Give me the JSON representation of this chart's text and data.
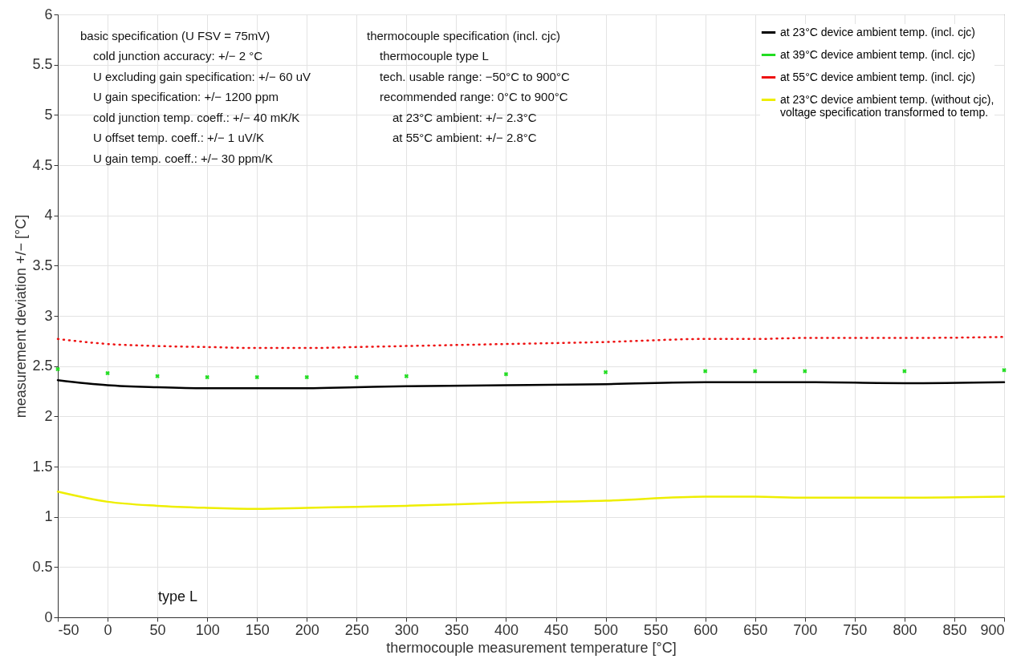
{
  "chart_data": {
    "type": "line",
    "xlabel": "thermocouple measurement temperature [°C]",
    "ylabel": "measurement deviation +/− [°C]",
    "x": [
      -50,
      0,
      50,
      100,
      150,
      200,
      250,
      300,
      400,
      500,
      600,
      650,
      700,
      800,
      900
    ],
    "series": [
      {
        "name": "at 23°C device ambient temp. (incl. cjc)",
        "color": "#000000",
        "values": [
          2.36,
          2.31,
          2.29,
          2.28,
          2.28,
          2.28,
          2.29,
          2.3,
          2.31,
          2.32,
          2.34,
          2.34,
          2.34,
          2.33,
          2.34
        ]
      },
      {
        "name": "at 39°C device ambient temp. (incl. cjc)",
        "color": "#22dd22",
        "type": "scatter",
        "marker": "cross",
        "values": [
          2.47,
          2.43,
          2.4,
          2.39,
          2.39,
          2.39,
          2.39,
          2.4,
          2.42,
          2.44,
          2.45,
          2.45,
          2.45,
          2.45,
          2.46
        ]
      },
      {
        "name": "at 55°C device ambient temp. (incl. cjc)",
        "color": "#ee1111",
        "line_style": "dotted",
        "values": [
          2.77,
          2.72,
          2.7,
          2.69,
          2.68,
          2.68,
          2.69,
          2.7,
          2.72,
          2.74,
          2.77,
          2.77,
          2.78,
          2.78,
          2.79
        ]
      },
      {
        "name": "at 23°C device ambient temp. (without cjc), voltage specification transformed to temp.",
        "color": "#eeee00",
        "values": [
          1.25,
          1.15,
          1.11,
          1.09,
          1.08,
          1.09,
          1.1,
          1.11,
          1.14,
          1.16,
          1.2,
          1.2,
          1.19,
          1.19,
          1.2
        ]
      }
    ],
    "xlim": [
      -50,
      900
    ],
    "xticks": [
      -50,
      0,
      50,
      100,
      150,
      200,
      250,
      300,
      350,
      400,
      450,
      500,
      550,
      600,
      650,
      700,
      750,
      800,
      850,
      900
    ],
    "ylim": [
      0,
      6
    ],
    "yticks": [
      0,
      0.5,
      1,
      1.5,
      2,
      2.5,
      3,
      3.5,
      4,
      4.5,
      5,
      5.5,
      6
    ],
    "grid": true,
    "legend": "top right",
    "line_style": "solid",
    "annotations": [
      "basic specification (U FSV = 75mV)",
      "cold junction accuracy: +/− 2 °C",
      "U excluding gain specification: +/− 60 uV",
      "U gain specification: +/− 1200 ppm",
      "cold junction temp. coeff.: +/− 40 mK/K",
      "U offset temp. coeff.: +/− 1 uV/K",
      "U gain temp. coeff.: +/− 30 ppm/K",
      "thermocouple specification (incl. cjc)",
      "thermocouple type L",
      "tech. usable range: −50°C to 900°C",
      "recommended range: 0°C to 900°C",
      "at 23°C ambient: +/− 2.3°C",
      "at 55°C ambient: +/− 2.8°C",
      "type L"
    ]
  }
}
